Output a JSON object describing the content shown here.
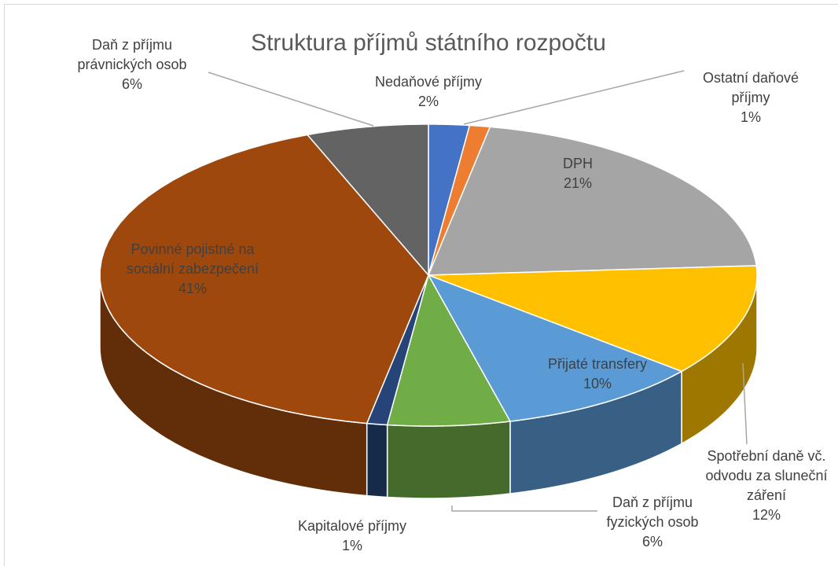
{
  "chart_data": {
    "type": "pie3d",
    "title": "Struktura příjmů státního rozpočtu",
    "categories": [
      "Nedaňové příjmy",
      "Ostatní daňové příjmy",
      "DPH",
      "Spotřební daně vč. odvodu za sluneční záření",
      "Přijaté transfery",
      "Daň z příjmu fyzických osob",
      "Kapitalové příjmy",
      "Povinné pojistné na sociální zabezpečení",
      "Daň z příjmu právnických osob"
    ],
    "values": [
      2,
      1,
      21,
      12,
      10,
      6,
      1,
      41,
      6
    ],
    "value_labels": [
      "2%",
      "1%",
      "21%",
      "12%",
      "10%",
      "6%",
      "1%",
      "41%",
      "6%"
    ],
    "colors": [
      "#4472c4",
      "#ed7d31",
      "#a5a5a5",
      "#ffc000",
      "#5b9bd5",
      "#70ad47",
      "#264478",
      "#9e480e",
      "#636363"
    ]
  }
}
